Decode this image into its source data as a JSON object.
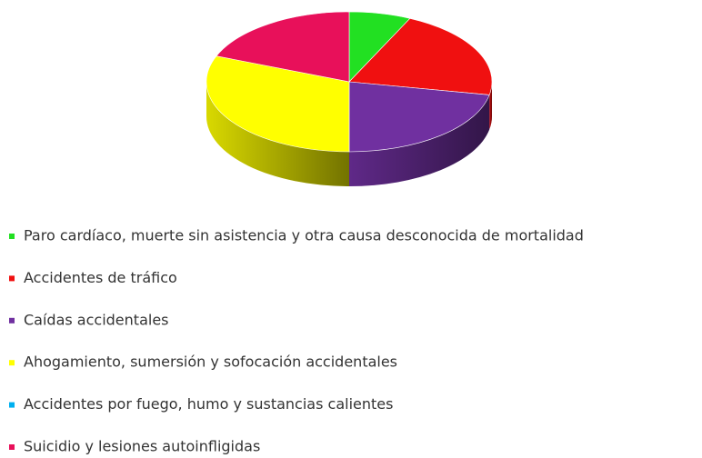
{
  "chart_data": {
    "type": "pie",
    "categories": [
      "Paro cardíaco, muerte sin asistencia y otra causa desconocida de mortalidad",
      "Accidentes de tráfico",
      "Caídas accidentales",
      "Ahogamiento, sumersión y sofocación accidentales",
      "Accidentes por fuego, humo y sustancias calientes",
      "Suicidio y lesiones autoinfligidas"
    ],
    "values": [
      7,
      21,
      22,
      31,
      0,
      19
    ],
    "colors": [
      "#22e022",
      "#f01010",
      "#7030a0",
      "#ffff00",
      "#00b0f0",
      "#e8105a"
    ]
  }
}
